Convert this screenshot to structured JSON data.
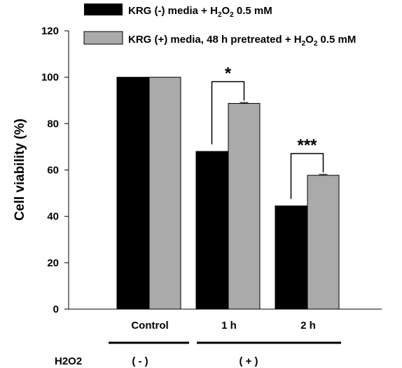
{
  "chart_data": {
    "type": "bar",
    "ylabel": "Cell viability (%)",
    "ylim": [
      0,
      120
    ],
    "yticks": [
      0,
      20,
      40,
      60,
      80,
      100,
      120
    ],
    "categories": [
      "Control",
      "1 h",
      "2 h"
    ],
    "series": [
      {
        "name": "KRG (-) media + H2O2 0.5 mM",
        "legend_parts": [
          "KRG (-) media + H",
          "2",
          "O",
          "2",
          " 0.5 mM"
        ],
        "color": "#000000",
        "values": [
          100,
          68,
          44.5
        ],
        "errors": [
          0,
          0,
          0
        ]
      },
      {
        "name": "KRG (+) media, 48 h pretreated + H2O2 0.5 mM",
        "legend_parts": [
          "KRG (+) media, 48 h pretreated + H",
          "2",
          "O",
          "2",
          " 0.5 mM"
        ],
        "color": "#aaaaaa",
        "values": [
          100,
          88.7,
          57.7
        ],
        "errors": [
          0,
          0.4,
          0.4
        ]
      }
    ],
    "significance": [
      {
        "category_index": 1,
        "label": "*"
      },
      {
        "category_index": 2,
        "label": "***"
      }
    ],
    "legend_position": "top",
    "grid": false
  },
  "condition_row": {
    "label": "H2O2",
    "groups": [
      {
        "label": "( - )"
      },
      {
        "label": "( + )"
      }
    ]
  }
}
